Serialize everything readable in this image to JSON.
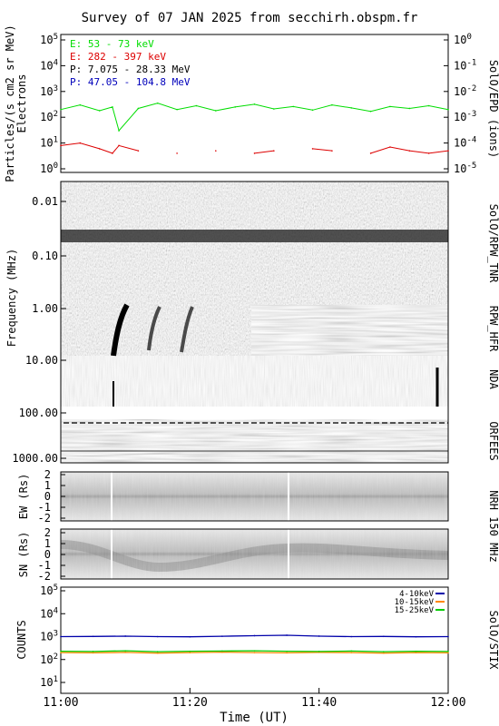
{
  "title": "Survey of 07 JAN 2025 from secchirh.obspm.fr",
  "colors": {
    "electron_low": "#00dd00",
    "electron_high": "#dd0000",
    "proton_low": "#000000",
    "proton_high": "#0000bb",
    "stix_low": "#0000aa",
    "stix_mid": "#ff8800",
    "stix_high": "#00cc00"
  },
  "panels": {
    "epd": {
      "instrument": "SolO/EPD (ions)",
      "ylabel_line1": "Particles/(s cm2 sr MeV)",
      "ylabel_line2": "Electrons",
      "left_ticks": [
        "10^5",
        "10^4",
        "10^3",
        "10^2",
        "10^1",
        "10^0"
      ],
      "right_ticks": [
        "10^0",
        "10^-1",
        "10^-2",
        "10^-3",
        "10^-4",
        "10^-5"
      ],
      "legend": [
        {
          "label": "E: 53 - 73 keV",
          "color": "#00dd00"
        },
        {
          "label": "E: 282 - 397 keV",
          "color": "#dd0000"
        },
        {
          "label": "P: 7.075 - 28.33 MeV",
          "color": "#000000"
        },
        {
          "label": "P: 47.05 - 104.8 MeV",
          "color": "#0000bb"
        }
      ]
    },
    "radio": {
      "ylabel": "Frequency (MHz)",
      "ticks": [
        "0.01",
        "0.10",
        "1.00",
        "10.00",
        "100.00",
        "1000.00"
      ],
      "labels": {
        "tnr": "SolO/RPW_TNR",
        "hfr": "RPW_HFR",
        "nda": "NDA",
        "orfees": "ORFEES"
      }
    },
    "nrh_ew": {
      "ylabel": "EW (Rs)",
      "ticks": [
        "2",
        "1",
        "0",
        "-1",
        "-2"
      ]
    },
    "nrh_sn": {
      "ylabel": "SN (Rs)",
      "ticks": [
        "2",
        "1",
        "0",
        "-1",
        "-2"
      ]
    },
    "nrh_label": "NRH 150 MHz",
    "stix": {
      "instrument": "SolO/STIX",
      "ylabel": "COUNTS",
      "ticks": [
        "10^5",
        "10^4",
        "10^3",
        "10^2",
        "10^1"
      ],
      "legend": [
        {
          "label": "4-10keV",
          "color": "#0000aa"
        },
        {
          "label": "10-15keV",
          "color": "#ff8800"
        },
        {
          "label": "15-25keV",
          "color": "#00cc00"
        }
      ]
    }
  },
  "xaxis": {
    "label": "Time (UT)",
    "ticks": [
      "11:00",
      "11:20",
      "11:40",
      "12:00"
    ]
  },
  "chart_data": [
    {
      "type": "line",
      "title": "",
      "xlabel": "",
      "ylabel": "Particles/(s cm2 sr MeV) Electrons",
      "yscale": "log",
      "ylim": [
        1,
        100000
      ],
      "xlim": [
        "11:00",
        "12:00"
      ],
      "x": [
        "11:00",
        "11:03",
        "11:06",
        "11:08",
        "11:09",
        "11:12",
        "11:15",
        "11:18",
        "11:21",
        "11:24",
        "11:27",
        "11:30",
        "11:33",
        "11:36",
        "11:39",
        "11:42",
        "11:45",
        "11:48",
        "11:51",
        "11:54",
        "11:57",
        "12:00"
      ],
      "series": [
        {
          "name": "E: 53 - 73 keV",
          "values": [
            200,
            300,
            180,
            250,
            30,
            220,
            350,
            200,
            280,
            180,
            250,
            320,
            210,
            260,
            190,
            300,
            230,
            170,
            260,
            220,
            280,
            200
          ]
        },
        {
          "name": "E: 282 - 397 keV",
          "values": [
            8,
            10,
            6,
            4,
            8,
            5,
            null,
            4,
            null,
            5,
            null,
            4,
            5,
            null,
            6,
            5,
            null,
            4,
            7,
            5,
            4,
            5
          ]
        }
      ]
    },
    {
      "type": "line",
      "title": "",
      "xlabel": "Time (UT)",
      "ylabel": "COUNTS",
      "yscale": "log",
      "ylim": [
        10,
        100000
      ],
      "xlim": [
        "11:00",
        "12:00"
      ],
      "x": [
        "11:00",
        "11:05",
        "11:10",
        "11:15",
        "11:20",
        "11:25",
        "11:30",
        "11:35",
        "11:40",
        "11:45",
        "11:50",
        "11:55",
        "12:00"
      ],
      "series": [
        {
          "name": "4-10keV",
          "values": [
            1000,
            1020,
            1050,
            1000,
            980,
            1040,
            1100,
            1150,
            1050,
            1000,
            1020,
            980,
            1000
          ]
        },
        {
          "name": "10-15keV",
          "values": [
            200,
            195,
            205,
            190,
            200,
            210,
            200,
            195,
            205,
            200,
            190,
            200,
            195
          ]
        },
        {
          "name": "15-25keV",
          "values": [
            230,
            225,
            240,
            220,
            230,
            235,
            240,
            230,
            225,
            235,
            220,
            230,
            225
          ]
        }
      ]
    }
  ]
}
